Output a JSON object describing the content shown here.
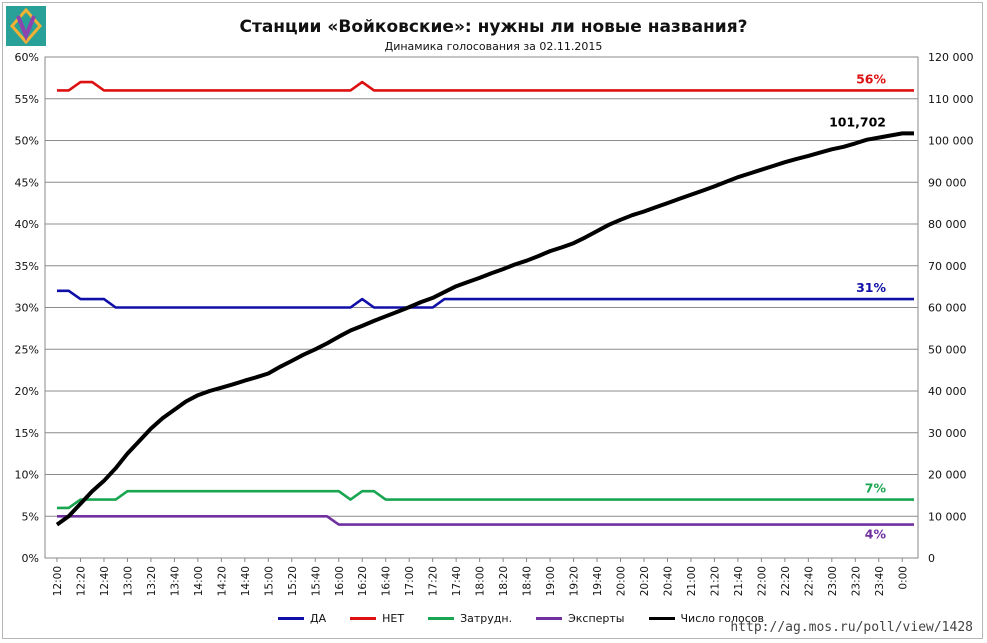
{
  "title": "Станции «Войковские»: нужны ли новые названия?",
  "subtitle": "Динамика голосования за 02.11.2015",
  "source_url": "http://ag.mos.ru/poll/view/1428",
  "logo": {
    "icon": "ag-mos-logo-icon",
    "colors": [
      "#2aa198",
      "#f2b134",
      "#8e44ad"
    ]
  },
  "chart_data": {
    "type": "line",
    "grid": true,
    "legend_position": "bottom",
    "x": [
      "12:00",
      "12:10",
      "12:20",
      "12:30",
      "12:40",
      "12:50",
      "13:00",
      "13:10",
      "13:20",
      "13:30",
      "13:40",
      "13:50",
      "14:00",
      "14:10",
      "14:20",
      "14:30",
      "14:40",
      "14:50",
      "15:00",
      "15:10",
      "15:20",
      "15:30",
      "15:40",
      "15:50",
      "16:00",
      "16:10",
      "16:20",
      "16:30",
      "16:40",
      "16:50",
      "17:00",
      "17:10",
      "17:20",
      "17:30",
      "17:40",
      "17:50",
      "18:00",
      "18:10",
      "18:20",
      "18:30",
      "18:40",
      "18:50",
      "19:00",
      "19:10",
      "19:20",
      "19:30",
      "19:40",
      "19:50",
      "20:00",
      "20:10",
      "20:20",
      "20:30",
      "20:40",
      "20:50",
      "21:00",
      "21:10",
      "21:20",
      "21:30",
      "21:40",
      "21:50",
      "22:00",
      "22:10",
      "22:20",
      "22:30",
      "22:40",
      "22:50",
      "23:00",
      "23:10",
      "23:20",
      "23:30",
      "23:40",
      "23:50",
      "0:00",
      "0:10"
    ],
    "x_tick_labels": [
      "12:00",
      "12:20",
      "12:40",
      "13:00",
      "13:20",
      "13:40",
      "14:00",
      "14:20",
      "14:40",
      "15:00",
      "15:20",
      "15:40",
      "16:00",
      "16:20",
      "16:40",
      "17:00",
      "17:20",
      "17:40",
      "18:00",
      "18:20",
      "18:40",
      "19:00",
      "19:20",
      "19:40",
      "20:00",
      "20:20",
      "20:40",
      "21:00",
      "21:20",
      "21:40",
      "22:00",
      "22:20",
      "22:40",
      "23:00",
      "23:20",
      "23:40",
      "0:00"
    ],
    "y_left": {
      "min": 0,
      "max": 60,
      "step": 5,
      "unit": "%",
      "tick_labels": [
        "0%",
        "5%",
        "10%",
        "15%",
        "20%",
        "25%",
        "30%",
        "35%",
        "40%",
        "45%",
        "50%",
        "55%",
        "60%"
      ]
    },
    "y_right": {
      "min": 0,
      "max": 120000,
      "step": 10000,
      "tick_labels": [
        "0",
        "10 000",
        "20 000",
        "30 000",
        "40 000",
        "50 000",
        "60 000",
        "70 000",
        "80 000",
        "90 000",
        "100 000",
        "110 000",
        "120 000"
      ]
    },
    "series": [
      {
        "name": "ДА",
        "color": "#1010a8",
        "axis": "left",
        "end_label": "31%",
        "values": [
          32,
          32,
          31,
          31,
          31,
          30,
          30,
          30,
          30,
          30,
          30,
          30,
          30,
          30,
          30,
          30,
          30,
          30,
          30,
          30,
          30,
          30,
          30,
          30,
          30,
          30,
          31,
          30,
          30,
          30,
          30,
          30,
          30,
          31,
          31,
          31,
          31,
          31,
          31,
          31,
          31,
          31,
          31,
          31,
          31,
          31,
          31,
          31,
          31,
          31,
          31,
          31,
          31,
          31,
          31,
          31,
          31,
          31,
          31,
          31,
          31,
          31,
          31,
          31,
          31,
          31,
          31,
          31,
          31,
          31,
          31,
          31,
          31,
          31
        ]
      },
      {
        "name": "НЕТ",
        "color": "#dd1111",
        "axis": "left",
        "end_label": "56%",
        "values": [
          56,
          56,
          57,
          57,
          56,
          56,
          56,
          56,
          56,
          56,
          56,
          56,
          56,
          56,
          56,
          56,
          56,
          56,
          56,
          56,
          56,
          56,
          56,
          56,
          56,
          56,
          57,
          56,
          56,
          56,
          56,
          56,
          56,
          56,
          56,
          56,
          56,
          56,
          56,
          56,
          56,
          56,
          56,
          56,
          56,
          56,
          56,
          56,
          56,
          56,
          56,
          56,
          56,
          56,
          56,
          56,
          56,
          56,
          56,
          56,
          56,
          56,
          56,
          56,
          56,
          56,
          56,
          56,
          56,
          56,
          56,
          56,
          56,
          56
        ]
      },
      {
        "name": "Затрудн.",
        "color": "#1aa551",
        "axis": "left",
        "end_label": "7%",
        "values": [
          6,
          6,
          7,
          7,
          7,
          7,
          8,
          8,
          8,
          8,
          8,
          8,
          8,
          8,
          8,
          8,
          8,
          8,
          8,
          8,
          8,
          8,
          8,
          8,
          8,
          7,
          8,
          8,
          7,
          7,
          7,
          7,
          7,
          7,
          7,
          7,
          7,
          7,
          7,
          7,
          7,
          7,
          7,
          7,
          7,
          7,
          7,
          7,
          7,
          7,
          7,
          7,
          7,
          7,
          7,
          7,
          7,
          7,
          7,
          7,
          7,
          7,
          7,
          7,
          7,
          7,
          7,
          7,
          7,
          7,
          7,
          7,
          7,
          7
        ]
      },
      {
        "name": "Эксперты",
        "color": "#7030a0",
        "axis": "left",
        "end_label": "4%",
        "values": [
          5,
          5,
          5,
          5,
          5,
          5,
          5,
          5,
          5,
          5,
          5,
          5,
          5,
          5,
          5,
          5,
          5,
          5,
          5,
          5,
          5,
          5,
          5,
          5,
          4,
          4,
          4,
          4,
          4,
          4,
          4,
          4,
          4,
          4,
          4,
          4,
          4,
          4,
          4,
          4,
          4,
          4,
          4,
          4,
          4,
          4,
          4,
          4,
          4,
          4,
          4,
          4,
          4,
          4,
          4,
          4,
          4,
          4,
          4,
          4,
          4,
          4,
          4,
          4,
          4,
          4,
          4,
          4,
          4,
          4,
          4,
          4,
          4,
          4
        ]
      },
      {
        "name": "Число голосов",
        "color": "#000000",
        "axis": "right",
        "end_label": "101,702",
        "values": [
          8000,
          10000,
          13000,
          16000,
          18500,
          21500,
          25000,
          28000,
          31000,
          33500,
          35500,
          37500,
          39000,
          40000,
          40800,
          41600,
          42500,
          43300,
          44200,
          45800,
          47200,
          48700,
          50000,
          51400,
          53000,
          54500,
          55600,
          56800,
          57900,
          59000,
          60100,
          61300,
          62300,
          63700,
          65100,
          66100,
          67100,
          68200,
          69200,
          70300,
          71200,
          72300,
          73500,
          74400,
          75400,
          76800,
          78300,
          79800,
          81000,
          82100,
          83000,
          84000,
          85000,
          86000,
          87000,
          88000,
          89000,
          90100,
          91200,
          92100,
          93000,
          93900,
          94800,
          95600,
          96300,
          97100,
          97900,
          98500,
          99300,
          100200,
          100700,
          101200,
          101702,
          101702
        ]
      }
    ]
  }
}
